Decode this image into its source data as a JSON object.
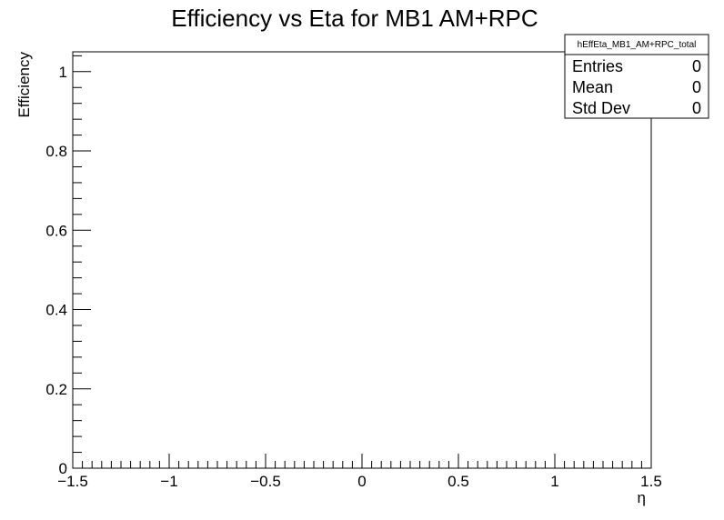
{
  "chart_data": {
    "type": "line",
    "title": "Efficiency vs Eta for MB1 AM+RPC",
    "xlabel": "η",
    "ylabel": "Efficiency",
    "xlim": [
      -1.5,
      1.5
    ],
    "ylim": [
      0,
      1.05
    ],
    "x_ticks": [
      -1.5,
      -1,
      -0.5,
      0,
      0.5,
      1,
      1.5
    ],
    "x_tick_labels": [
      "−1.5",
      "−1",
      "−0.5",
      "0",
      "0.5",
      "1",
      "1.5"
    ],
    "y_ticks": [
      0,
      0.2,
      0.4,
      0.6,
      0.8,
      1
    ],
    "y_tick_labels": [
      "0",
      "0.2",
      "0.4",
      "0.6",
      "0.8",
      "1"
    ],
    "x": [],
    "values": [],
    "grid": false,
    "stats_box": {
      "name": "hEffEta_MB1_AM+RPC_total",
      "rows": [
        {
          "label": "Entries",
          "value": "0"
        },
        {
          "label": "Mean",
          "value": "0"
        },
        {
          "label": "Std Dev",
          "value": "0"
        }
      ]
    }
  }
}
